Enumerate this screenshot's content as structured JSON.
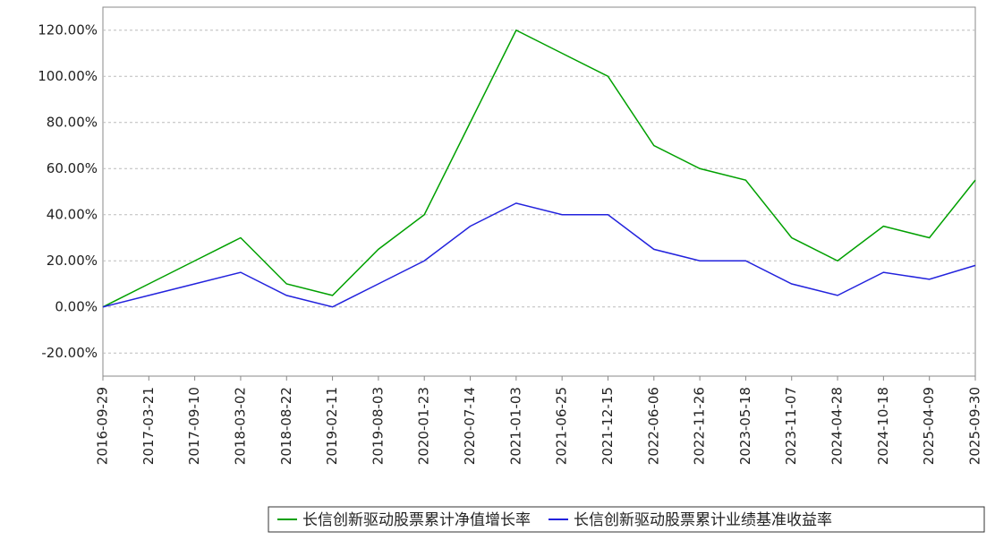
{
  "chart_data": {
    "type": "line",
    "categories": [
      "2016-09-29",
      "2017-03-21",
      "2017-09-10",
      "2018-03-02",
      "2018-08-22",
      "2019-02-11",
      "2019-08-03",
      "2020-01-23",
      "2020-07-14",
      "2021-01-03",
      "2021-06-25",
      "2021-12-15",
      "2022-06-06",
      "2022-11-26",
      "2023-05-18",
      "2023-11-07",
      "2024-04-28",
      "2024-10-18",
      "2025-04-09",
      "2025-09-30"
    ],
    "series": [
      {
        "name": "长信创新驱动股票累计净值增长率",
        "color": "#00a000",
        "values": [
          0,
          10,
          20,
          30,
          10,
          5,
          25,
          40,
          80,
          120,
          110,
          100,
          70,
          60,
          55,
          30,
          20,
          35,
          30,
          55
        ]
      },
      {
        "name": "长信创新驱动股票累计业绩基准收益率",
        "color": "#2222dd",
        "values": [
          0,
          5,
          10,
          15,
          5,
          0,
          10,
          20,
          35,
          45,
          40,
          40,
          25,
          20,
          20,
          10,
          5,
          15,
          12,
          18
        ]
      }
    ],
    "ylim": [
      -30,
      130
    ],
    "yticks": [
      {
        "value": -20,
        "label": "-20.00%"
      },
      {
        "value": 0,
        "label": "0.00%"
      },
      {
        "value": 20,
        "label": "20.00%"
      },
      {
        "value": 40,
        "label": "40.00%"
      },
      {
        "value": 60,
        "label": "60.00%"
      },
      {
        "value": 80,
        "label": "80.00%"
      },
      {
        "value": 100,
        "label": "100.00%"
      },
      {
        "value": 120,
        "label": "120.00%"
      }
    ],
    "grid": true
  }
}
